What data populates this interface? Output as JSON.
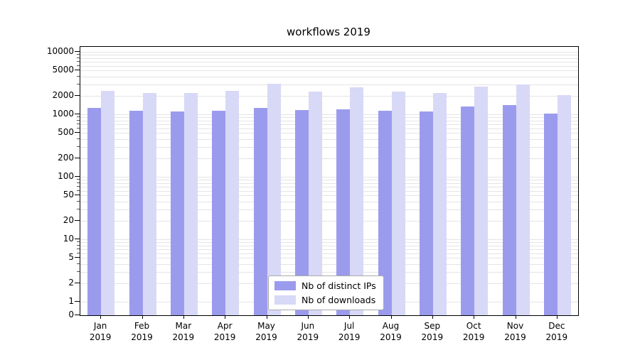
{
  "chart_data": {
    "type": "bar",
    "title": "workflows 2019",
    "year": "2019",
    "categories": [
      "Jan",
      "Feb",
      "Mar",
      "Apr",
      "May",
      "Jun",
      "Jul",
      "Aug",
      "Sep",
      "Oct",
      "Nov",
      "Dec"
    ],
    "series": [
      {
        "name": "Nb of distinct IPs",
        "color": "#9b9bee",
        "values": [
          1250,
          1150,
          1100,
          1150,
          1250,
          1170,
          1200,
          1150,
          1120,
          1350,
          1400,
          1020
        ]
      },
      {
        "name": "Nb of downloads",
        "color": "#d8d8f7",
        "values": [
          2400,
          2200,
          2200,
          2350,
          3050,
          2300,
          2700,
          2300,
          2200,
          2800,
          3000,
          2050
        ]
      }
    ],
    "yscale": "symlog",
    "yticks": [
      0,
      1,
      2,
      5,
      10,
      20,
      50,
      100,
      200,
      500,
      1000,
      2000,
      5000,
      10000
    ],
    "ylim": [
      0,
      12000
    ],
    "grid": true,
    "legend_position": "lower center"
  }
}
